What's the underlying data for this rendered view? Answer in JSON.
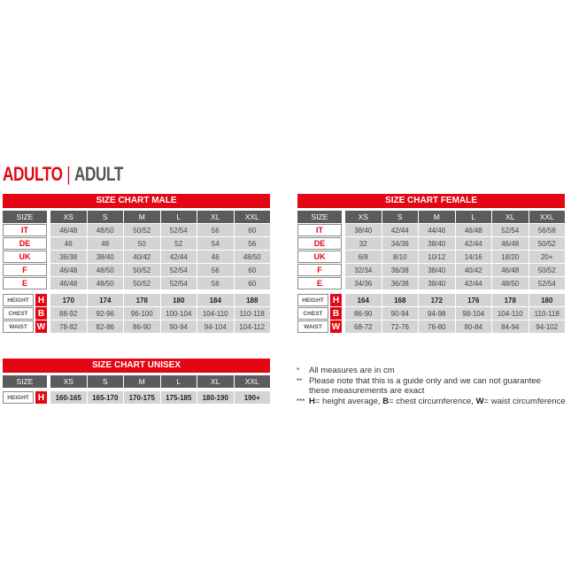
{
  "heading": {
    "red": "ADULTO",
    "separator": "|",
    "grey": "ADULT"
  },
  "colors": {
    "accent": "#e30613",
    "header_bg": "#5b5b5d",
    "cell_bg": "#d4d4d4"
  },
  "charts": [
    {
      "id": "male",
      "title": "SIZE CHART MALE",
      "size_header": "SIZE",
      "columns": [
        "XS",
        "S",
        "M",
        "L",
        "XL",
        "XXL"
      ],
      "size_rows": [
        {
          "label": "IT",
          "values": [
            "46/48",
            "48/50",
            "50/52",
            "52/54",
            "56",
            "60"
          ]
        },
        {
          "label": "DE",
          "values": [
            "46",
            "48",
            "50",
            "52",
            "54",
            "56"
          ]
        },
        {
          "label": "UK",
          "values": [
            "36/38",
            "38/40",
            "40/42",
            "42/44",
            "46",
            "48/50"
          ]
        },
        {
          "label": "F",
          "values": [
            "46/48",
            "48/50",
            "50/52",
            "52/54",
            "56",
            "60"
          ]
        },
        {
          "label": "E",
          "values": [
            "46/48",
            "48/50",
            "50/52",
            "52/54",
            "56",
            "60"
          ]
        }
      ],
      "measure_rows": [
        {
          "label": "HEIGHT",
          "letter": "H",
          "values": [
            "170",
            "174",
            "178",
            "180",
            "184",
            "188"
          ]
        },
        {
          "label": "CHEST",
          "letter": "B",
          "values": [
            "88-92",
            "92-96",
            "96-100",
            "100-104",
            "104-110",
            "110-118"
          ]
        },
        {
          "label": "WAIST",
          "letter": "W",
          "values": [
            "78-82",
            "82-86",
            "86-90",
            "90-94",
            "94-104",
            "104-112"
          ]
        }
      ]
    },
    {
      "id": "female",
      "title": "SIZE CHART FEMALE",
      "size_header": "SIZE",
      "columns": [
        "XS",
        "S",
        "M",
        "L",
        "XL",
        "XXL"
      ],
      "size_rows": [
        {
          "label": "IT",
          "values": [
            "38/40",
            "42/44",
            "44/46",
            "46/48",
            "52/54",
            "56/58"
          ]
        },
        {
          "label": "DE",
          "values": [
            "32",
            "34/36",
            "38/40",
            "42/44",
            "46/48",
            "50/52"
          ]
        },
        {
          "label": "UK",
          "values": [
            "6/8",
            "8/10",
            "10/12",
            "14/16",
            "18/20",
            "20+"
          ]
        },
        {
          "label": "F",
          "values": [
            "32/34",
            "36/38",
            "38/40",
            "40/42",
            "46/48",
            "50/52"
          ]
        },
        {
          "label": "E",
          "values": [
            "34/36",
            "36/38",
            "38/40",
            "42/44",
            "48/50",
            "52/54"
          ]
        }
      ],
      "measure_rows": [
        {
          "label": "HEIGHT",
          "letter": "H",
          "values": [
            "164",
            "168",
            "172",
            "176",
            "178",
            "180"
          ]
        },
        {
          "label": "CHEST",
          "letter": "B",
          "values": [
            "86-90",
            "90-94",
            "94-98",
            "98-104",
            "104-110",
            "110-118"
          ]
        },
        {
          "label": "WAIST",
          "letter": "W",
          "values": [
            "68-72",
            "72-76",
            "76-80",
            "80-84",
            "84-94",
            "94-102"
          ]
        }
      ]
    },
    {
      "id": "unisex",
      "title": "SIZE CHART UNISEX",
      "size_header": "SIZE",
      "columns": [
        "XS",
        "S",
        "M",
        "L",
        "XL",
        "XXL"
      ],
      "size_rows": [],
      "measure_rows": [
        {
          "label": "HEIGHT",
          "letter": "H",
          "values": [
            "160-165",
            "165-170",
            "170-175",
            "175-185",
            "180-190",
            "190+"
          ]
        }
      ]
    }
  ],
  "notes": [
    {
      "marker": "*",
      "text": "All measures are in cm"
    },
    {
      "marker": "**",
      "text": "Please note that this is a guide only and we can not guarantee these measurements are exact"
    },
    {
      "marker": "***",
      "parts": [
        {
          "b": "H",
          "t": "= height average, "
        },
        {
          "b": "B",
          "t": "= chest circumference, "
        },
        {
          "b": "W",
          "t": "= waist circumference"
        }
      ]
    }
  ]
}
